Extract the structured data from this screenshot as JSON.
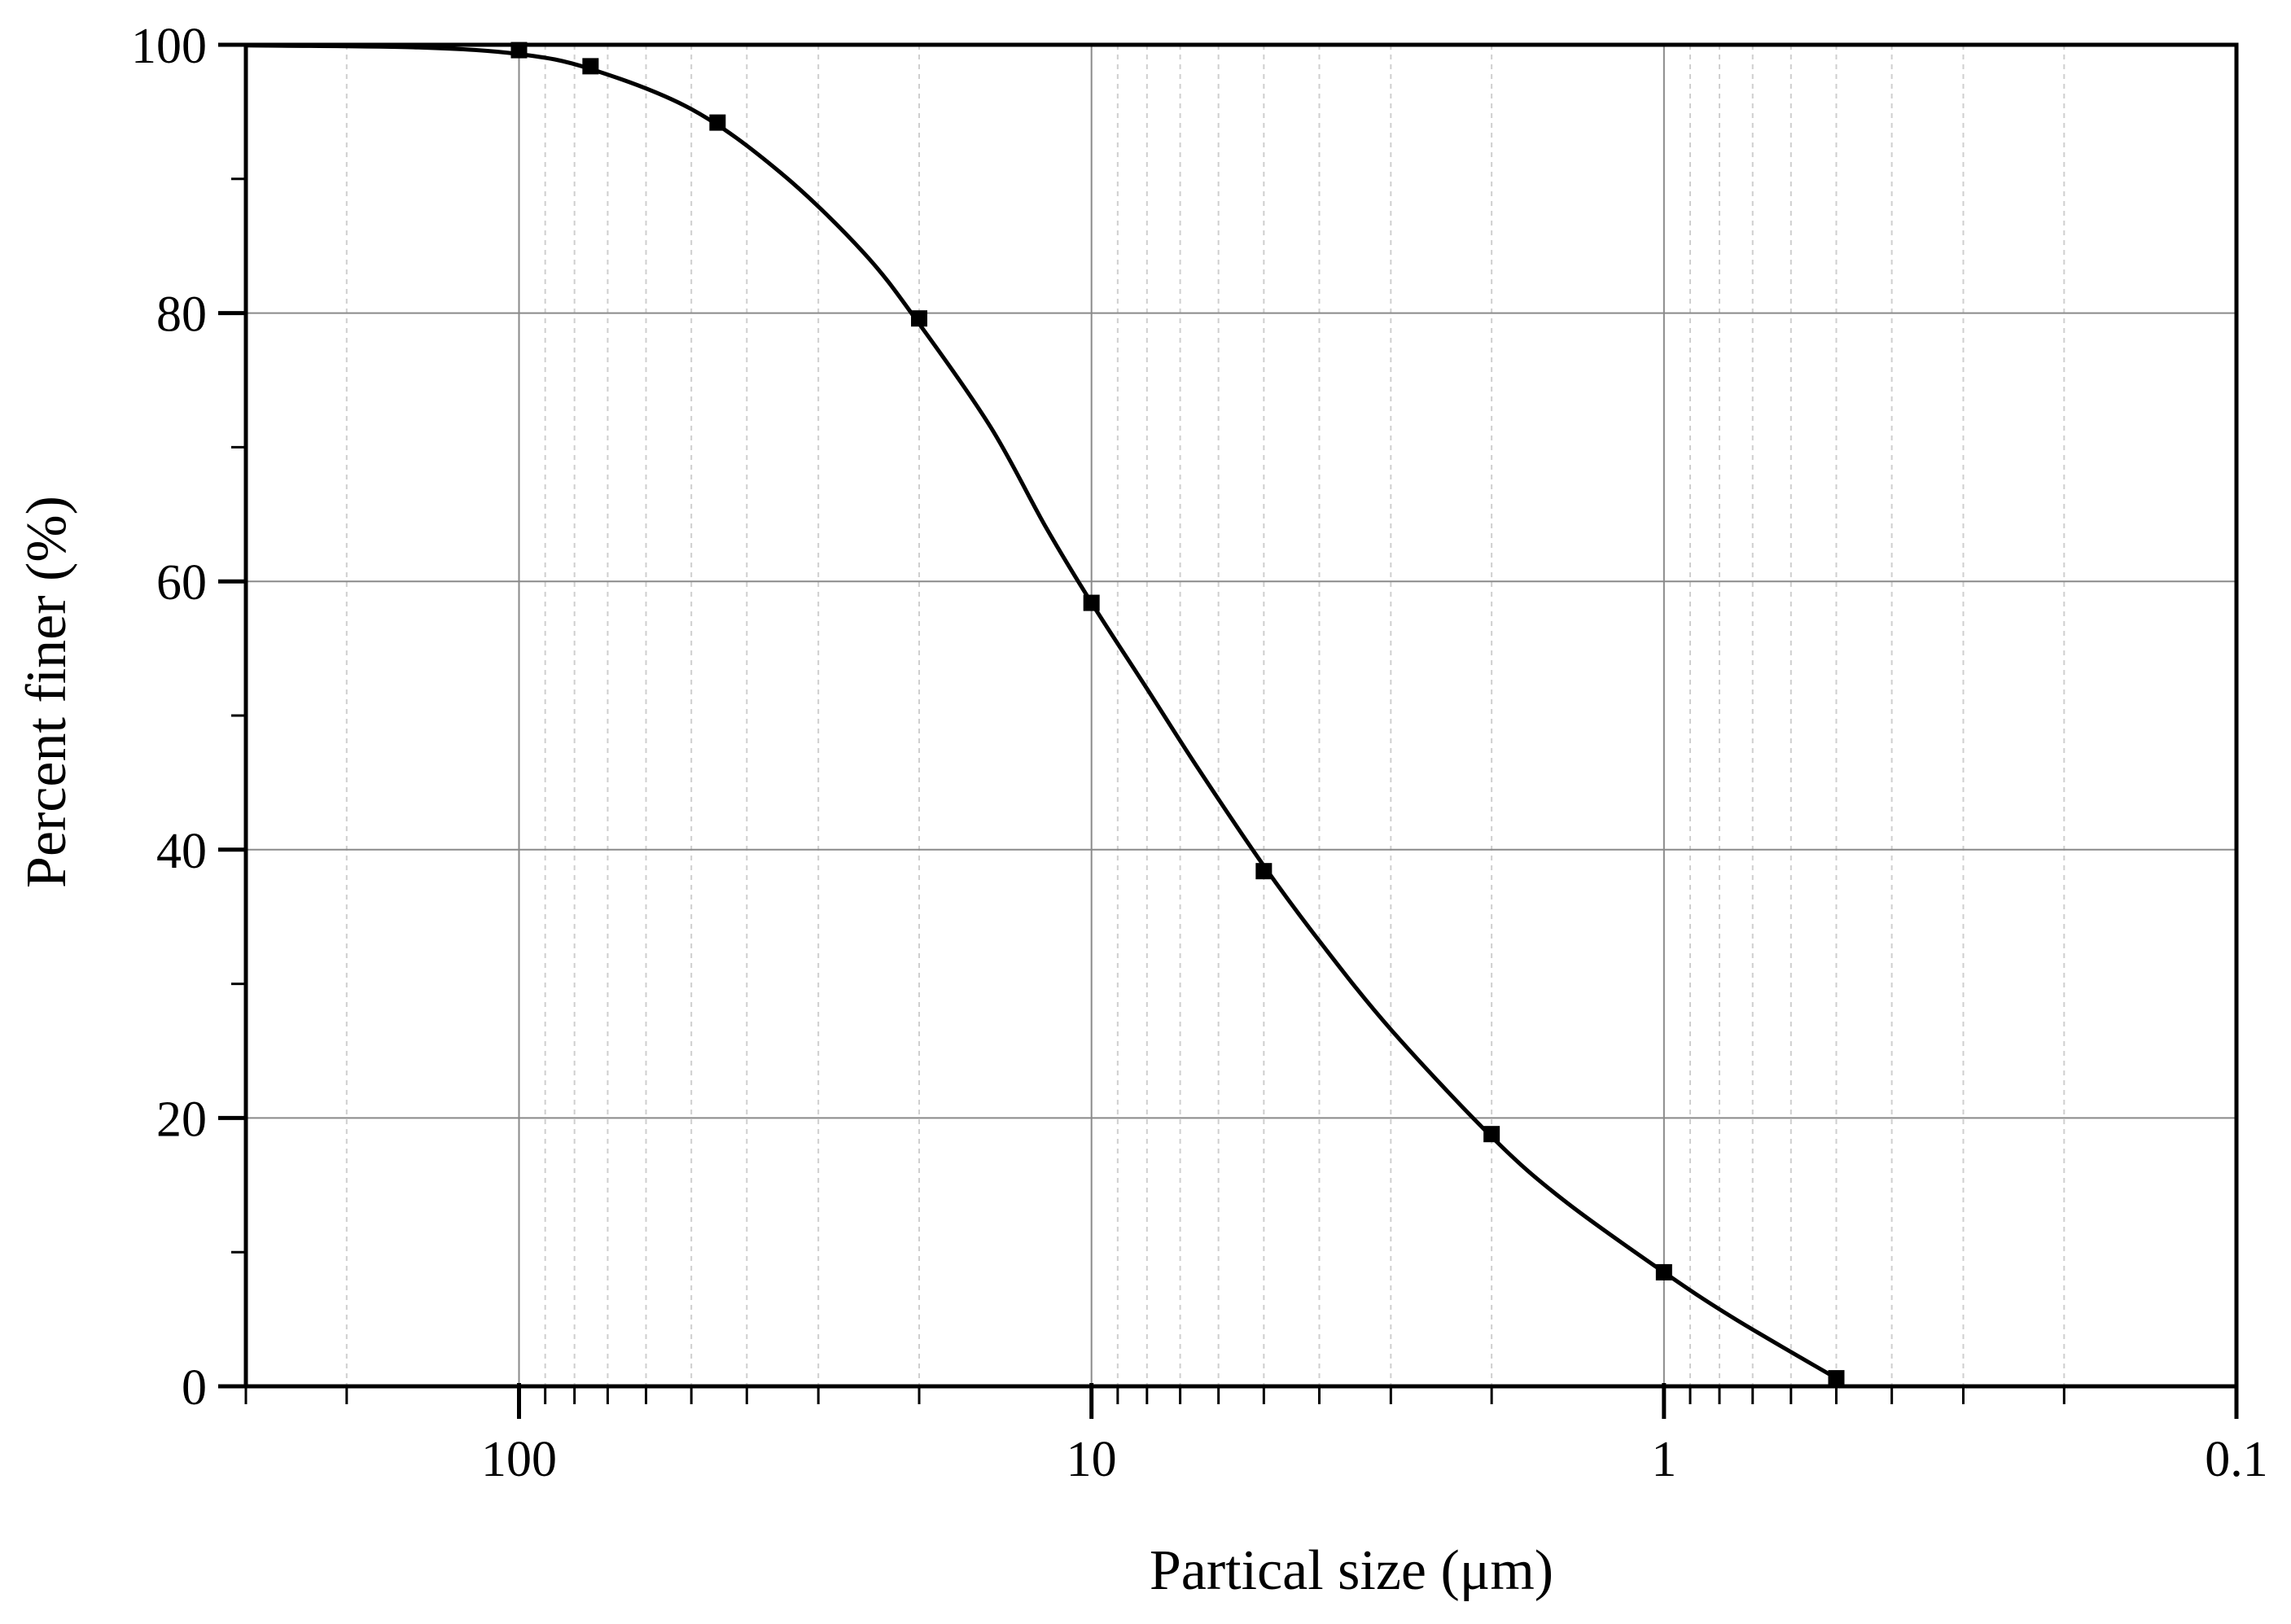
{
  "chart_data": {
    "type": "scatter",
    "xlabel": "Partical size (μm)",
    "ylabel": "Percent finer (%)",
    "x_scale": "log",
    "x_reversed": true,
    "xlim": [
      300,
      0.1
    ],
    "ylim": [
      0,
      100
    ],
    "x_ticks": [
      {
        "value": 100,
        "label": "100"
      },
      {
        "value": 10,
        "label": "10"
      },
      {
        "value": 1,
        "label": "1"
      },
      {
        "value": 0.1,
        "label": "0.1"
      }
    ],
    "y_ticks": [
      {
        "value": 0,
        "label": "0"
      },
      {
        "value": 20,
        "label": "20"
      },
      {
        "value": 40,
        "label": "40"
      },
      {
        "value": 60,
        "label": "60"
      },
      {
        "value": 80,
        "label": "80"
      },
      {
        "value": 100,
        "label": "100"
      }
    ],
    "grid": true,
    "legend": "none",
    "marker_color": "#000000",
    "line_color": "#000000",
    "points": [
      {
        "x": 100,
        "y": 99.6
      },
      {
        "x": 75,
        "y": 98.4
      },
      {
        "x": 45,
        "y": 94.2
      },
      {
        "x": 20,
        "y": 79.6
      },
      {
        "x": 10,
        "y": 58.4
      },
      {
        "x": 5,
        "y": 38.4
      },
      {
        "x": 2,
        "y": 18.8
      },
      {
        "x": 1,
        "y": 8.5
      },
      {
        "x": 0.5,
        "y": 0.6
      }
    ],
    "fit_curve": {
      "type": "smooth",
      "x": [
        300,
        150,
        100,
        75,
        50,
        35,
        25,
        20,
        15,
        12,
        10,
        8,
        6.5,
        5,
        4,
        3,
        2,
        1.5,
        1,
        0.75,
        0.5
      ],
      "y": [
        99.95,
        99.8,
        99.3,
        98.2,
        95.2,
        90.5,
        84.5,
        79.2,
        71.5,
        64.0,
        58.4,
        52.0,
        46.0,
        38.8,
        33.2,
        26.6,
        18.6,
        13.9,
        8.5,
        5.0,
        0.6
      ]
    }
  }
}
